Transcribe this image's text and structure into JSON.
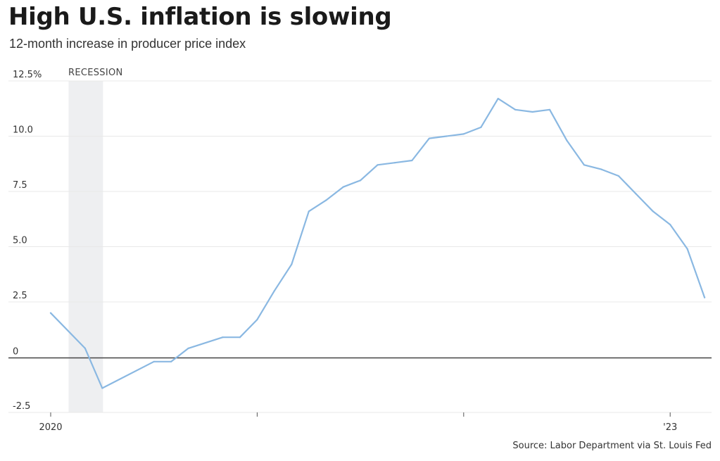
{
  "chart_data": {
    "type": "line",
    "title": "High U.S. inflation is slowing",
    "subtitle": "12-month increase in producer price index",
    "source": "Source: Labor Department via St. Louis Fed",
    "ylim": [
      -2.5,
      12.5
    ],
    "y_ticks": [
      {
        "value": 12.5,
        "label": "12.5%"
      },
      {
        "value": 10,
        "label": "10.0"
      },
      {
        "value": 7.5,
        "label": "7.5"
      },
      {
        "value": 5,
        "label": "5.0"
      },
      {
        "value": 2.5,
        "label": "2.5"
      },
      {
        "value": 0,
        "label": "0"
      },
      {
        "value": -2.5,
        "label": "-2.5"
      }
    ],
    "x_range": [
      "2020-01",
      "2023-02"
    ],
    "x_ticks": [
      {
        "value": "2020-01",
        "label": "2020"
      },
      {
        "value": "2021-01",
        "label": ""
      },
      {
        "value": "2022-01",
        "label": ""
      },
      {
        "value": "2023-01",
        "label": "'23"
      }
    ],
    "recession": {
      "label": "RECESSION",
      "start": "2020-02",
      "end": "2020-04"
    },
    "series": [
      {
        "color": "#8ab8e2",
        "points": [
          {
            "x": "2020-01",
            "y": 2.0
          },
          {
            "x": "2020-03",
            "y": 0.4
          },
          {
            "x": "2020-04",
            "y": -1.4
          },
          {
            "x": "2020-07",
            "y": -0.2
          },
          {
            "x": "2020-08",
            "y": -0.2
          },
          {
            "x": "2020-09",
            "y": 0.4
          },
          {
            "x": "2020-11",
            "y": 0.9
          },
          {
            "x": "2020-12",
            "y": 0.9
          },
          {
            "x": "2021-01",
            "y": 1.7
          },
          {
            "x": "2021-02",
            "y": 3.0
          },
          {
            "x": "2021-03",
            "y": 4.2
          },
          {
            "x": "2021-04",
            "y": 6.6
          },
          {
            "x": "2021-05",
            "y": 7.1
          },
          {
            "x": "2021-06",
            "y": 7.7
          },
          {
            "x": "2021-07",
            "y": 8.0
          },
          {
            "x": "2021-08",
            "y": 8.7
          },
          {
            "x": "2021-09",
            "y": 8.8
          },
          {
            "x": "2021-10",
            "y": 8.9
          },
          {
            "x": "2021-11",
            "y": 9.9
          },
          {
            "x": "2021-12",
            "y": 10.0
          },
          {
            "x": "2022-01",
            "y": 10.1
          },
          {
            "x": "2022-02",
            "y": 10.4
          },
          {
            "x": "2022-03",
            "y": 11.7
          },
          {
            "x": "2022-04",
            "y": 11.2
          },
          {
            "x": "2022-05",
            "y": 11.1
          },
          {
            "x": "2022-06",
            "y": 11.2
          },
          {
            "x": "2022-07",
            "y": 9.8
          },
          {
            "x": "2022-08",
            "y": 8.7
          },
          {
            "x": "2022-09",
            "y": 8.5
          },
          {
            "x": "2022-10",
            "y": 8.2
          },
          {
            "x": "2022-11",
            "y": 7.4
          },
          {
            "x": "2022-12",
            "y": 6.6
          },
          {
            "x": "2023-01",
            "y": 6.0
          },
          {
            "x": "2023-02",
            "y": 4.9
          },
          {
            "x": "2023-03",
            "y": 2.7
          }
        ]
      }
    ],
    "grid": true,
    "colors": {
      "line": "#8ab8e2",
      "recession_band": "#eeeff1",
      "gridline": "#e8e8e8",
      "zero_line": "#444444"
    }
  }
}
